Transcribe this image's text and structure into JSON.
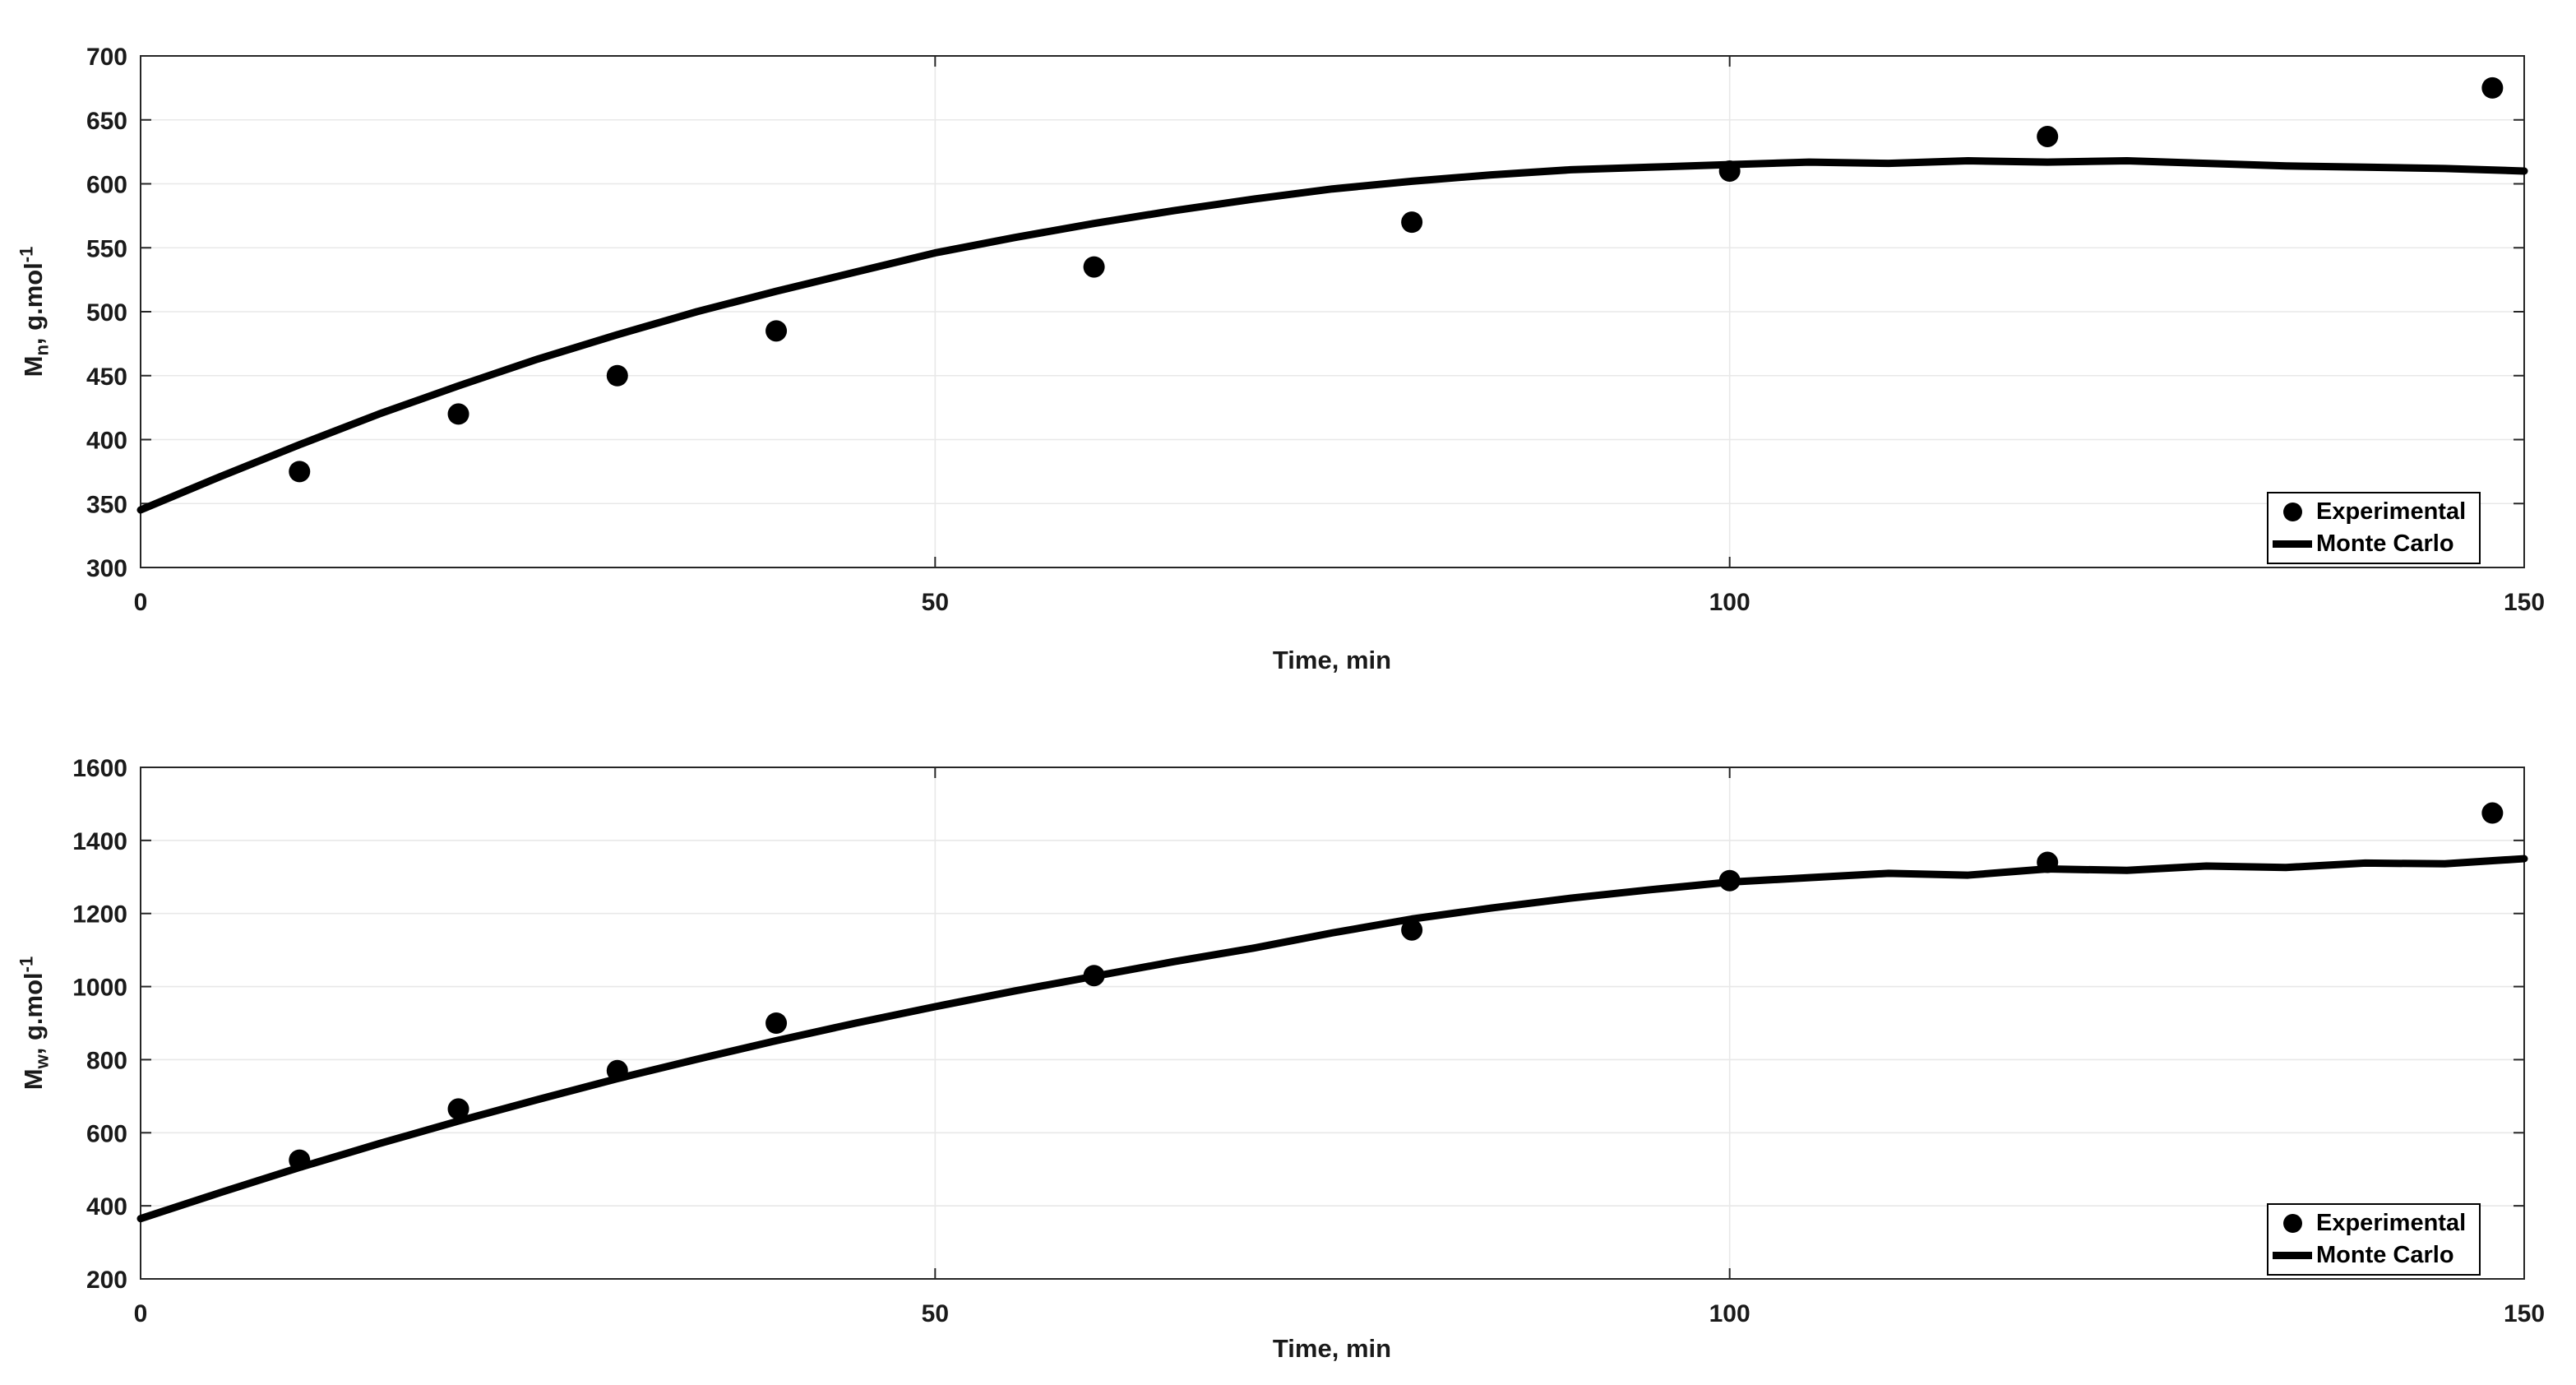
{
  "figure": {
    "background": "#ffffff",
    "axis_color": "#262626",
    "grid_color": "#e8e8e8",
    "series_color": "#000000"
  },
  "chart_data": [
    {
      "type": "line",
      "title": "",
      "xlabel": "Time, min",
      "ylabel": {
        "prefix": "M",
        "sub": "n",
        "rest": ", g.mol",
        "sup": "-1",
        "plain": "Mn, g.mol-1"
      },
      "xlim": [
        0,
        150
      ],
      "ylim": [
        300,
        700
      ],
      "xticks": [
        0,
        50,
        100,
        150
      ],
      "yticks": [
        300,
        350,
        400,
        450,
        500,
        550,
        600,
        650,
        700
      ],
      "grid": true,
      "legend": {
        "position": "lower right",
        "entries": [
          {
            "label": "Experimental",
            "marker": "dot"
          },
          {
            "label": "Monte Carlo",
            "marker": "line"
          }
        ]
      },
      "series": [
        {
          "name": "Monte Carlo",
          "type": "line",
          "x": [
            0,
            5,
            10,
            15,
            20,
            25,
            30,
            35,
            40,
            45,
            50,
            55,
            60,
            65,
            70,
            75,
            80,
            85,
            90,
            95,
            100,
            105,
            110,
            115,
            120,
            125,
            130,
            135,
            140,
            145,
            150
          ],
          "y": [
            345,
            371,
            396,
            420,
            442,
            463,
            482,
            500,
            516,
            531,
            546,
            558,
            569,
            579,
            588,
            596,
            602,
            607,
            611,
            613,
            615,
            617,
            616,
            618,
            617,
            618,
            616,
            614,
            613,
            612,
            610
          ]
        },
        {
          "name": "Experimental",
          "type": "scatter",
          "x": [
            10,
            20,
            30,
            40,
            60,
            80,
            100,
            120,
            148
          ],
          "y": [
            375,
            420,
            450,
            485,
            535,
            570,
            610,
            637,
            675
          ]
        }
      ]
    },
    {
      "type": "line",
      "title": "",
      "xlabel": "Time, min",
      "ylabel": {
        "prefix": "M",
        "sub": "w",
        "rest": ", g.mol",
        "sup": "-1",
        "plain": "Mw, g.mol-1"
      },
      "xlim": [
        0,
        150
      ],
      "ylim": [
        200,
        1600
      ],
      "xticks": [
        0,
        50,
        100,
        150
      ],
      "yticks": [
        200,
        400,
        600,
        800,
        1000,
        1200,
        1400,
        1600
      ],
      "grid": true,
      "legend": {
        "position": "lower right",
        "entries": [
          {
            "label": "Experimental",
            "marker": "dot"
          },
          {
            "label": "Monte Carlo",
            "marker": "line"
          }
        ]
      },
      "series": [
        {
          "name": "Monte Carlo",
          "type": "line",
          "x": [
            0,
            5,
            10,
            15,
            20,
            25,
            30,
            35,
            40,
            45,
            50,
            55,
            60,
            65,
            70,
            75,
            80,
            85,
            90,
            95,
            100,
            105,
            110,
            115,
            120,
            125,
            130,
            135,
            140,
            145,
            150
          ],
          "y": [
            365,
            436,
            505,
            570,
            632,
            691,
            748,
            801,
            852,
            900,
            945,
            988,
            1028,
            1068,
            1105,
            1147,
            1185,
            1215,
            1242,
            1265,
            1286,
            1298,
            1310,
            1305,
            1322,
            1318,
            1330,
            1326,
            1338,
            1336,
            1350
          ]
        },
        {
          "name": "Experimental",
          "type": "scatter",
          "x": [
            10,
            20,
            30,
            40,
            60,
            80,
            100,
            120,
            148
          ],
          "y": [
            525,
            665,
            770,
            900,
            1030,
            1155,
            1290,
            1340,
            1475
          ]
        }
      ]
    }
  ]
}
